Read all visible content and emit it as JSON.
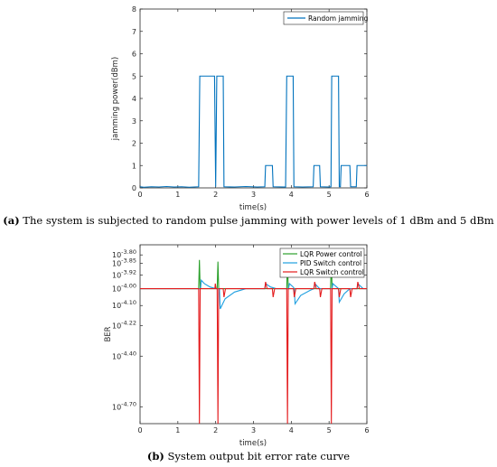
{
  "chart_data": [
    {
      "type": "line",
      "xlabel": "time(s)",
      "ylabel": "jamming power(dBm)",
      "xlim": [
        0,
        6
      ],
      "ylim": [
        0,
        8
      ],
      "xticks": [
        "0",
        "1",
        "2",
        "3",
        "4",
        "5",
        "6"
      ],
      "yticks": [
        "0",
        "1",
        "2",
        "3",
        "4",
        "5",
        "6",
        "7",
        "8"
      ],
      "grid": false,
      "legend_position": "top-right",
      "caption": {
        "prefix": "(a)",
        "text": " The system is subjected to random pulse jamming with power levels of 1 dBm and 5 dBm"
      },
      "series": [
        {
          "name": "Random jamming",
          "color": "#0072BD",
          "points": [
            [
              0,
              0.05
            ],
            [
              0.1,
              0.03
            ],
            [
              0.3,
              0.05
            ],
            [
              0.5,
              0.04
            ],
            [
              0.7,
              0.06
            ],
            [
              0.9,
              0.04
            ],
            [
              1.1,
              0.05
            ],
            [
              1.3,
              0.03
            ],
            [
              1.55,
              0.05
            ],
            [
              1.58,
              5.0
            ],
            [
              1.97,
              5.0
            ],
            [
              2.0,
              0.05
            ],
            [
              2.03,
              5.0
            ],
            [
              2.2,
              5.0
            ],
            [
              2.22,
              0.05
            ],
            [
              2.5,
              0.04
            ],
            [
              2.8,
              0.06
            ],
            [
              3.1,
              0.04
            ],
            [
              3.3,
              0.05
            ],
            [
              3.32,
              1.0
            ],
            [
              3.5,
              1.0
            ],
            [
              3.52,
              0.05
            ],
            [
              3.85,
              0.04
            ],
            [
              3.88,
              5.0
            ],
            [
              4.05,
              5.0
            ],
            [
              4.07,
              0.05
            ],
            [
              4.3,
              0.04
            ],
            [
              4.58,
              0.05
            ],
            [
              4.6,
              1.0
            ],
            [
              4.75,
              1.0
            ],
            [
              4.77,
              0.05
            ],
            [
              5.0,
              0.04
            ],
            [
              5.05,
              0.05
            ],
            [
              5.07,
              5.0
            ],
            [
              5.25,
              5.0
            ],
            [
              5.27,
              0.05
            ],
            [
              5.3,
              0.05
            ],
            [
              5.32,
              1.0
            ],
            [
              5.55,
              1.0
            ],
            [
              5.57,
              0.05
            ],
            [
              5.72,
              0.05
            ],
            [
              5.74,
              1.0
            ],
            [
              6.0,
              1.0
            ]
          ]
        }
      ]
    },
    {
      "type": "line",
      "xlabel": "time(s)",
      "ylabel": "BER",
      "xlim": [
        0,
        6
      ],
      "y_scale": "log10 exponent",
      "ylim": [
        -4.8,
        -3.74
      ],
      "xticks": [
        "0",
        "1",
        "2",
        "3",
        "4",
        "5",
        "6"
      ],
      "ytick_base": "10",
      "yticks": [
        "-3.80",
        "-3.85",
        "-3.92",
        "-4.00",
        "-4.10",
        "-4.22",
        "-4.40",
        "-4.70"
      ],
      "grid": false,
      "legend_position": "top-right",
      "caption": {
        "prefix": "(b)",
        "text": " System output bit error rate curve"
      },
      "series": [
        {
          "name": "LQR Power control",
          "color": "#2BA02B",
          "points": [
            [
              0,
              -4.0
            ],
            [
              1.55,
              -4.0
            ],
            [
              1.57,
              -3.83
            ],
            [
              1.59,
              -4.0
            ],
            [
              2.04,
              -4.0
            ],
            [
              2.06,
              -3.84
            ],
            [
              2.08,
              -4.0
            ],
            [
              3.88,
              -4.0
            ],
            [
              3.9,
              -3.83
            ],
            [
              3.92,
              -4.0
            ],
            [
              5.04,
              -4.0
            ],
            [
              5.06,
              -3.83
            ],
            [
              5.08,
              -4.0
            ],
            [
              6.0,
              -4.0
            ]
          ]
        },
        {
          "name": "PID Switch control",
          "color": "#1F9FE0",
          "points": [
            [
              0,
              -4.0
            ],
            [
              1.6,
              -4.0
            ],
            [
              1.62,
              -3.95
            ],
            [
              1.7,
              -3.97
            ],
            [
              1.85,
              -3.99
            ],
            [
              2.0,
              -4.0
            ],
            [
              2.1,
              -4.0
            ],
            [
              2.12,
              -4.12
            ],
            [
              2.25,
              -4.06
            ],
            [
              2.5,
              -4.02
            ],
            [
              2.8,
              -4.0
            ],
            [
              3.3,
              -4.0
            ],
            [
              3.32,
              -3.97
            ],
            [
              3.45,
              -3.99
            ],
            [
              3.6,
              -4.0
            ],
            [
              3.93,
              -4.0
            ],
            [
              3.95,
              -3.97
            ],
            [
              4.05,
              -3.99
            ],
            [
              4.08,
              -4.0
            ],
            [
              4.1,
              -4.09
            ],
            [
              4.25,
              -4.04
            ],
            [
              4.5,
              -4.01
            ],
            [
              4.6,
              -4.0
            ],
            [
              4.62,
              -3.97
            ],
            [
              4.75,
              -4.0
            ],
            [
              5.08,
              -4.0
            ],
            [
              5.1,
              -3.97
            ],
            [
              5.25,
              -4.0
            ],
            [
              5.27,
              -4.08
            ],
            [
              5.4,
              -4.03
            ],
            [
              5.55,
              -4.0
            ],
            [
              5.74,
              -4.0
            ],
            [
              5.76,
              -3.97
            ],
            [
              5.9,
              -4.0
            ],
            [
              6.0,
              -4.0
            ]
          ]
        },
        {
          "name": "LQR Switch control",
          "color": "#E41A1C",
          "points": [
            [
              0,
              -4.0
            ],
            [
              1.55,
              -4.0
            ],
            [
              1.57,
              -4.8
            ],
            [
              1.59,
              -4.0
            ],
            [
              1.98,
              -4.0
            ],
            [
              1.99,
              -3.97
            ],
            [
              2.01,
              -4.0
            ],
            [
              2.04,
              -4.0
            ],
            [
              2.06,
              -4.8
            ],
            [
              2.08,
              -4.0
            ],
            [
              2.2,
              -4.0
            ],
            [
              2.22,
              -4.05
            ],
            [
              2.26,
              -4.0
            ],
            [
              3.3,
              -4.0
            ],
            [
              3.32,
              -3.96
            ],
            [
              3.36,
              -4.0
            ],
            [
              3.5,
              -4.0
            ],
            [
              3.52,
              -4.05
            ],
            [
              3.56,
              -4.0
            ],
            [
              3.88,
              -4.0
            ],
            [
              3.9,
              -4.8
            ],
            [
              3.92,
              -4.0
            ],
            [
              4.06,
              -4.0
            ],
            [
              4.08,
              -4.05
            ],
            [
              4.12,
              -4.0
            ],
            [
              4.6,
              -4.0
            ],
            [
              4.62,
              -3.96
            ],
            [
              4.66,
              -4.0
            ],
            [
              4.75,
              -4.0
            ],
            [
              4.77,
              -4.05
            ],
            [
              4.81,
              -4.0
            ],
            [
              5.04,
              -4.0
            ],
            [
              5.06,
              -4.8
            ],
            [
              5.08,
              -4.0
            ],
            [
              5.25,
              -4.0
            ],
            [
              5.27,
              -4.05
            ],
            [
              5.31,
              -4.0
            ],
            [
              5.55,
              -4.0
            ],
            [
              5.57,
              -4.05
            ],
            [
              5.61,
              -4.0
            ],
            [
              5.74,
              -4.0
            ],
            [
              5.76,
              -3.96
            ],
            [
              5.8,
              -4.0
            ],
            [
              6.0,
              -4.0
            ]
          ]
        }
      ]
    }
  ]
}
